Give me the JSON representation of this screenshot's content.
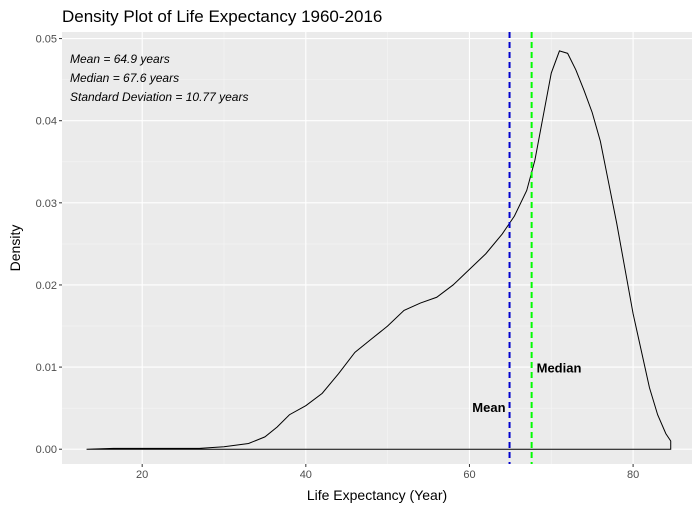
{
  "chart_data": {
    "type": "area",
    "title": "Density Plot of Life Expectancy 1960-2016",
    "xlabel": "Life Expectancy (Year)",
    "ylabel": "Density",
    "xlim": [
      10.2,
      87.2
    ],
    "ylim": [
      -0.0018,
      0.0508
    ],
    "x_ticks": [
      20,
      40,
      60,
      80
    ],
    "y_ticks": [
      0.0,
      0.01,
      0.02,
      0.03,
      0.04,
      0.05
    ],
    "y_tick_labels": [
      "0.00",
      "0.01",
      "0.02",
      "0.03",
      "0.04",
      "0.05"
    ],
    "grid": true,
    "annotations": [
      "Mean = 64.9 years",
      "Median = 67.6 years",
      "Standard Deviation =  10.77 years"
    ],
    "vlines": [
      {
        "label": "Mean",
        "x": 64.9,
        "color": "#0000cc"
      },
      {
        "label": "Median",
        "x": 67.6,
        "color": "#00ff00"
      }
    ],
    "density": {
      "x": [
        13.2,
        16.5,
        20,
        24,
        27,
        30,
        33,
        35,
        36.5,
        38,
        40,
        42,
        44,
        46,
        48,
        50,
        52,
        54,
        56,
        58,
        60,
        62,
        64,
        65.5,
        67,
        68,
        69,
        70,
        71,
        72,
        73,
        74,
        75,
        76,
        77,
        78,
        79,
        80,
        81,
        82,
        83,
        84,
        84.6,
        84.6
      ],
      "y": [
        0.0,
        0.0001,
        0.0001,
        0.0001,
        0.0001,
        0.0003,
        0.0007,
        0.0015,
        0.0027,
        0.0042,
        0.0053,
        0.0068,
        0.0092,
        0.0118,
        0.0134,
        0.015,
        0.0169,
        0.0178,
        0.0185,
        0.02,
        0.0219,
        0.0238,
        0.0262,
        0.0284,
        0.0315,
        0.0352,
        0.0405,
        0.0458,
        0.0485,
        0.0482,
        0.0462,
        0.0437,
        0.041,
        0.0375,
        0.0325,
        0.0275,
        0.022,
        0.0165,
        0.012,
        0.0075,
        0.0042,
        0.0019,
        0.001,
        0.0
      ]
    }
  }
}
